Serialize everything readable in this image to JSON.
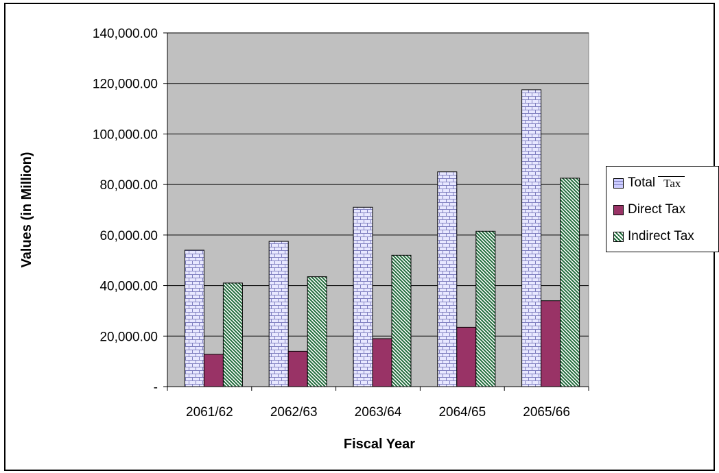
{
  "chart_data": {
    "type": "bar",
    "categories": [
      "2061/62",
      "2062/63",
      "2063/64",
      "2064/65",
      "2065/66"
    ],
    "series": [
      {
        "name": "Total Tax",
        "values": [
          54000,
          57500,
          71000,
          85000,
          117500
        ],
        "color": "#ccccff",
        "pattern": "brick"
      },
      {
        "name": "Direct Tax",
        "values": [
          12800,
          14000,
          19000,
          23500,
          34000
        ],
        "color": "#993366",
        "pattern": "solid"
      },
      {
        "name": "Indirect Tax",
        "values": [
          41000,
          43500,
          52000,
          61500,
          82500
        ],
        "color": "#339966",
        "pattern": "diagonal"
      }
    ],
    "xlabel": "Fiscal Year",
    "ylabel": "Values (in Million)",
    "ylim": [
      0,
      140000
    ],
    "yticks": [
      0,
      20000,
      40000,
      60000,
      80000,
      100000,
      120000,
      140000
    ],
    "ytick_labels": [
      "-",
      "20,000.00",
      "40,000.00",
      "60,000.00",
      "80,000.00",
      "100,000.00",
      "120,000.00",
      "140,000.00"
    ],
    "grid": true,
    "plot_background": "#c0c0c0",
    "legend_position": "right",
    "legend": {
      "total_label": "Total",
      "total_label_suffix": "Tax",
      "direct_label": "Direct Tax",
      "indirect_label": "Indirect Tax"
    }
  }
}
